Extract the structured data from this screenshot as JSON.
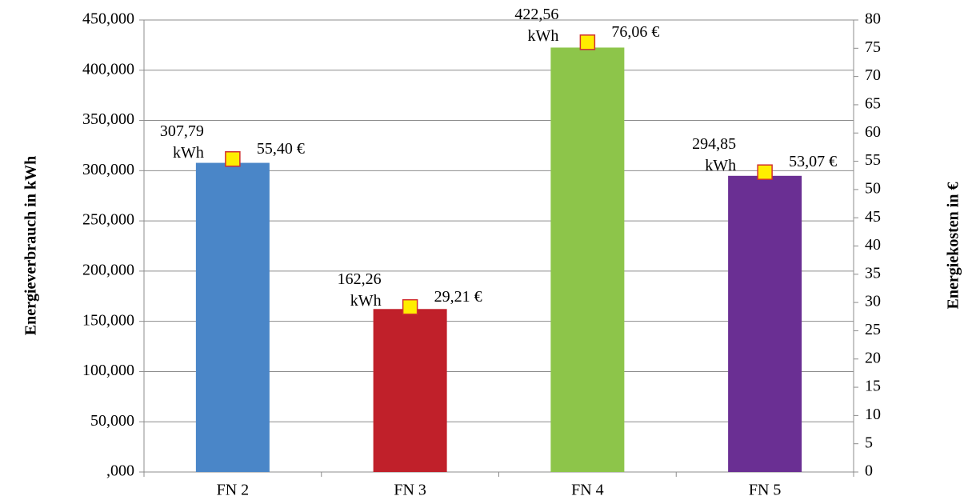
{
  "chart_data": {
    "type": "bar",
    "categories": [
      "FN 2",
      "FN 3",
      "FN 4",
      "FN 5"
    ],
    "series": [
      {
        "values": [
          307.79,
          162.26,
          422.56,
          294.85
        ],
        "value_labels": [
          "307,79\nkWh",
          "162,26\nkWh",
          "422,56\nkWh",
          "294,85\nkWh"
        ],
        "colors": [
          "#4a86c8",
          "#c0202a",
          "#8dc54a",
          "#6a2f93"
        ]
      },
      {
        "type": "scatter",
        "axis": "y2",
        "values": [
          55.4,
          29.21,
          76.06,
          53.07
        ],
        "value_labels": [
          "55,40 €",
          "29,21 €",
          "76,06 €",
          "53,07 €"
        ],
        "color": "#ffee00",
        "edge_color": "#d03030"
      }
    ],
    "ylabel": "Energieverbrauch in kWh",
    "y2label": "Energiekosten in €",
    "ylim": [
      0,
      450
    ],
    "yticks": [
      {
        "value": 0,
        "label": ",000"
      },
      {
        "value": 50,
        "label": "50,000"
      },
      {
        "value": 100,
        "label": "100,000"
      },
      {
        "value": 150,
        "label": "150,000"
      },
      {
        "value": 200,
        "label": "200,000"
      },
      {
        "value": 250,
        "label": "250,000"
      },
      {
        "value": 300,
        "label": "300,000"
      },
      {
        "value": 350,
        "label": "350,000"
      },
      {
        "value": 400,
        "label": "400,000"
      },
      {
        "value": 450,
        "label": "450,000"
      }
    ],
    "y2lim": [
      0,
      80
    ],
    "y2ticks": [
      0,
      5,
      10,
      15,
      20,
      25,
      30,
      35,
      40,
      45,
      50,
      55,
      60,
      65,
      70,
      75,
      80
    ],
    "grid": true
  }
}
